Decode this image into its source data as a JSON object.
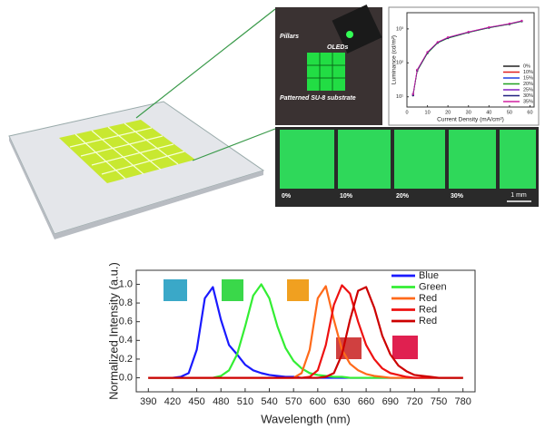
{
  "photos": {
    "labels": [
      "Pillars",
      "OLEDs",
      "Patterned SU-8 substrate"
    ],
    "strain_labels": [
      "0%",
      "10%",
      "20%",
      "30%"
    ],
    "scale_bar": "1 mm"
  },
  "chart_data": [
    {
      "type": "line",
      "log_y": true,
      "xlabel": "Current Density (mA/cm²)",
      "ylabel": "Luminance (cd/m²)",
      "x": [
        3,
        5,
        10,
        15,
        20,
        30,
        40,
        50,
        56
      ],
      "series": [
        {
          "name": "0%",
          "color": "#222222",
          "values": [
            12,
            60,
            200,
            400,
            550,
            800,
            1100,
            1400,
            1700
          ]
        },
        {
          "name": "10%",
          "color": "#e02020",
          "values": [
            11,
            58,
            195,
            390,
            540,
            790,
            1080,
            1380,
            1680
          ]
        },
        {
          "name": "15%",
          "color": "#2040e0",
          "values": [
            12,
            62,
            205,
            405,
            560,
            810,
            1110,
            1420,
            1720
          ]
        },
        {
          "name": "20%",
          "color": "#20a020",
          "values": [
            11,
            57,
            190,
            385,
            530,
            780,
            1070,
            1370,
            1660
          ]
        },
        {
          "name": "25%",
          "color": "#8020c0",
          "values": [
            12,
            61,
            202,
            402,
            555,
            805,
            1105,
            1410,
            1710
          ]
        },
        {
          "name": "30%",
          "color": "#202080",
          "values": [
            11,
            59,
            198,
            395,
            545,
            795,
            1090,
            1390,
            1690
          ]
        },
        {
          "name": "35%",
          "color": "#d020a0",
          "values": [
            12,
            63,
            208,
            410,
            565,
            815,
            1120,
            1430,
            1740
          ]
        }
      ],
      "xlim": [
        0,
        62
      ],
      "xticks": [
        0,
        10,
        20,
        30,
        40,
        50,
        60
      ],
      "ylim": [
        5,
        3000
      ],
      "yticks": [
        {
          "value": 10,
          "label": "10¹"
        },
        {
          "value": 100,
          "label": "10²"
        },
        {
          "value": 1000,
          "label": "10³"
        }
      ],
      "legend": "lower right"
    },
    {
      "type": "line",
      "log_y": false,
      "xlabel": "Wavelength (nm)",
      "ylabel": "Normalized Intensity (a.u.)",
      "x": [
        390,
        400,
        410,
        420,
        430,
        440,
        450,
        460,
        470,
        480,
        490,
        500,
        510,
        520,
        530,
        540,
        550,
        560,
        570,
        580,
        590,
        600,
        610,
        620,
        630,
        640,
        650,
        660,
        670,
        680,
        690,
        700,
        710,
        720,
        730,
        740,
        750,
        760,
        770,
        780
      ],
      "series": [
        {
          "name": "Blue",
          "color": "#1a1aff",
          "values": [
            0,
            0,
            0,
            0,
            0.01,
            0.05,
            0.3,
            0.85,
            0.97,
            0.62,
            0.35,
            0.25,
            0.14,
            0.08,
            0.05,
            0.03,
            0.02,
            0.01,
            0.01,
            0,
            0,
            0,
            0,
            0,
            0,
            0,
            0,
            0,
            0,
            0,
            0,
            0,
            0,
            0,
            0,
            0,
            0,
            0,
            0,
            0
          ]
        },
        {
          "name": "Green",
          "color": "#33ee33",
          "values": [
            0,
            0,
            0,
            0,
            0,
            0,
            0,
            0,
            0,
            0.02,
            0.08,
            0.25,
            0.55,
            0.88,
            1.0,
            0.85,
            0.55,
            0.32,
            0.18,
            0.1,
            0.05,
            0.03,
            0.02,
            0.01,
            0.01,
            0,
            0,
            0,
            0,
            0,
            0,
            0,
            0,
            0,
            0,
            0,
            0,
            0,
            0,
            0
          ]
        },
        {
          "name": "Red",
          "color": "#ff6a1a",
          "values": [
            0,
            0,
            0,
            0,
            0,
            0,
            0,
            0,
            0,
            0,
            0,
            0,
            0,
            0,
            0,
            0,
            0,
            0,
            0,
            0.05,
            0.3,
            0.85,
            0.98,
            0.62,
            0.3,
            0.15,
            0.08,
            0.04,
            0.02,
            0.01,
            0,
            0,
            0,
            0,
            0,
            0,
            0,
            0,
            0,
            0
          ]
        },
        {
          "name": "Red",
          "color": "#ee1111",
          "values": [
            0,
            0,
            0,
            0,
            0,
            0,
            0,
            0,
            0,
            0,
            0,
            0,
            0,
            0,
            0,
            0,
            0,
            0,
            0,
            0,
            0.01,
            0.08,
            0.35,
            0.78,
            0.99,
            0.9,
            0.6,
            0.35,
            0.2,
            0.1,
            0.05,
            0.03,
            0.01,
            0,
            0,
            0,
            0,
            0,
            0,
            0
          ]
        },
        {
          "name": "Red",
          "color": "#cc0000",
          "values": [
            0,
            0,
            0,
            0,
            0,
            0,
            0,
            0,
            0,
            0,
            0,
            0,
            0,
            0,
            0,
            0,
            0,
            0,
            0,
            0,
            0,
            0,
            0.01,
            0.05,
            0.25,
            0.62,
            0.93,
            0.97,
            0.75,
            0.45,
            0.25,
            0.13,
            0.07,
            0.03,
            0.02,
            0.01,
            0,
            0,
            0,
            0
          ]
        }
      ],
      "xlim": [
        375,
        795
      ],
      "xticks": [
        390,
        420,
        450,
        480,
        510,
        540,
        570,
        600,
        630,
        660,
        690,
        720,
        750,
        780
      ],
      "ylim": [
        -0.15,
        1.15
      ],
      "yticks": [
        {
          "value": 0,
          "label": "0.0"
        },
        0.2,
        0.4,
        0.6,
        0.8,
        {
          "value": 1,
          "label": "1.0"
        }
      ],
      "legend": "upper right"
    }
  ]
}
